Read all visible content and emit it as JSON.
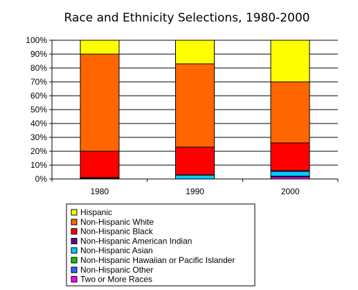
{
  "chart_data": {
    "type": "bar",
    "stacked": true,
    "percent_stacked": true,
    "title": "Race and Ethnicity Selections, 1980-2000",
    "xlabel": "",
    "ylabel": "",
    "ylim": [
      0,
      100
    ],
    "y_tick_labels": [
      "0%",
      "10%",
      "20%",
      "30%",
      "40%",
      "50%",
      "60%",
      "70%",
      "80%",
      "90%",
      "100%"
    ],
    "grid": true,
    "legend_position": "bottom",
    "categories": [
      "1980",
      "1990",
      "2000"
    ],
    "series": [
      {
        "name": "Two or More Races",
        "color": "#ff00ff",
        "values": [
          0,
          0,
          1.5
        ]
      },
      {
        "name": "Non-Hispanic Other",
        "color": "#3366ff",
        "values": [
          0.3,
          0,
          0.5
        ]
      },
      {
        "name": "Non-Hispanic Hawaiian or Pacific Islander",
        "color": "#00cc00",
        "values": [
          0,
          0,
          0
        ]
      },
      {
        "name": "Non-Hispanic Asian",
        "color": "#00ccff",
        "values": [
          0.5,
          2.7,
          3.5
        ]
      },
      {
        "name": "Non-Hispanic American Indian",
        "color": "#660099",
        "values": [
          0.2,
          0.3,
          0.5
        ]
      },
      {
        "name": "Non-Hispanic Black",
        "color": "#ff0000",
        "values": [
          19,
          20,
          20
        ]
      },
      {
        "name": "Non-Hispanic White",
        "color": "#ff6600",
        "values": [
          70,
          60,
          44
        ]
      },
      {
        "name": "Hispanic",
        "color": "#ffff00",
        "values": [
          10,
          17,
          30
        ]
      }
    ],
    "legend_order": [
      "Hispanic",
      "Non-Hispanic White",
      "Non-Hispanic Black",
      "Non-Hispanic American Indian",
      "Non-Hispanic Asian",
      "Non-Hispanic Hawaiian or Pacific Islander",
      "Non-Hispanic Other",
      "Two or More Races"
    ]
  }
}
